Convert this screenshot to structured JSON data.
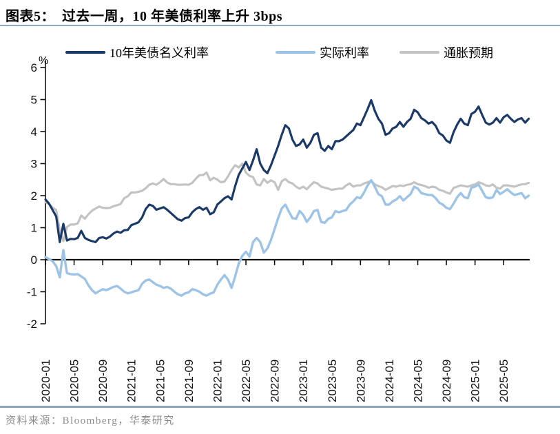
{
  "header": {
    "prefix": "图表5：",
    "title": "过去一周，10 年美债利率上升 3bps"
  },
  "source": {
    "text": "资料来源：Bloomberg，华泰研究"
  },
  "chart_data": {
    "type": "line",
    "unit_label": "%",
    "ylim": [
      -2,
      6
    ],
    "y_ticks": [
      6,
      5,
      4,
      3,
      2,
      1,
      0,
      -1,
      -2
    ],
    "x_start_month": "2020-01",
    "x_end_month": "2025-08",
    "points_per_month": 2,
    "x_tick_labels": [
      "2020-01",
      "2020-05",
      "2020-09",
      "2021-01",
      "2021-05",
      "2021-09",
      "2022-01",
      "2022-05",
      "2022-09",
      "2023-01",
      "2023-05",
      "2023-09",
      "2024-01",
      "2024-05",
      "2024-09",
      "2025-01",
      "2025-05"
    ],
    "legend_position": "top",
    "grid": false,
    "series": [
      {
        "name": "10年美债名义利率",
        "color": "#1b3a68",
        "width": 3.2,
        "values": [
          1.88,
          1.75,
          1.55,
          1.35,
          0.55,
          1.12,
          0.6,
          0.65,
          0.64,
          0.68,
          0.9,
          0.68,
          0.62,
          0.58,
          0.55,
          0.68,
          0.7,
          0.66,
          0.72,
          0.82,
          0.88,
          0.84,
          0.92,
          0.93,
          1.08,
          1.12,
          1.17,
          1.32,
          1.58,
          1.72,
          1.68,
          1.56,
          1.6,
          1.64,
          1.56,
          1.46,
          1.36,
          1.26,
          1.22,
          1.3,
          1.32,
          1.48,
          1.58,
          1.64,
          1.56,
          1.62,
          1.42,
          1.48,
          1.72,
          1.82,
          1.92,
          1.98,
          1.88,
          2.3,
          2.65,
          2.85,
          3.05,
          2.8,
          3.1,
          3.45,
          3.0,
          2.8,
          2.7,
          2.95,
          3.25,
          3.55,
          3.9,
          4.2,
          4.1,
          3.75,
          3.55,
          3.6,
          3.75,
          3.5,
          3.65,
          3.9,
          3.95,
          3.5,
          3.4,
          3.55,
          3.45,
          3.7,
          3.7,
          3.75,
          3.85,
          3.95,
          4.05,
          4.25,
          4.2,
          4.45,
          4.7,
          4.98,
          4.65,
          4.4,
          4.25,
          3.9,
          3.95,
          4.1,
          4.15,
          4.3,
          4.15,
          4.3,
          4.4,
          4.68,
          4.6,
          4.42,
          4.35,
          4.25,
          4.3,
          4.18,
          3.95,
          3.88,
          3.72,
          3.65,
          3.98,
          4.22,
          4.4,
          4.25,
          4.2,
          4.55,
          4.62,
          4.78,
          4.52,
          4.28,
          4.22,
          4.28,
          4.42,
          4.28,
          4.45,
          4.52,
          4.4,
          4.3,
          4.38,
          4.42,
          4.28,
          4.4
        ]
      },
      {
        "name": "实际利率",
        "color": "#9dc3e6",
        "width": 3.4,
        "values": [
          0.08,
          0.02,
          -0.05,
          -0.2,
          -0.55,
          0.3,
          -0.42,
          -0.45,
          -0.46,
          -0.45,
          -0.52,
          -0.6,
          -0.8,
          -0.95,
          -1.05,
          -0.98,
          -0.92,
          -0.95,
          -0.9,
          -0.85,
          -0.82,
          -0.9,
          -1.0,
          -1.05,
          -1.02,
          -0.98,
          -0.95,
          -0.75,
          -0.65,
          -0.62,
          -0.7,
          -0.78,
          -0.82,
          -0.88,
          -0.85,
          -0.9,
          -1.0,
          -1.08,
          -1.12,
          -1.05,
          -1.02,
          -0.92,
          -0.95,
          -1.0,
          -1.08,
          -1.12,
          -1.06,
          -1.02,
          -0.78,
          -0.62,
          -0.48,
          -0.62,
          -0.88,
          -0.52,
          -0.12,
          0.12,
          0.25,
          0.1,
          0.55,
          0.68,
          0.55,
          0.22,
          0.35,
          0.62,
          0.95,
          1.3,
          1.6,
          1.72,
          1.5,
          1.3,
          1.28,
          1.52,
          1.4,
          1.18,
          1.32,
          1.52,
          1.55,
          1.18,
          1.15,
          1.28,
          1.32,
          1.52,
          1.48,
          1.52,
          1.55,
          1.72,
          1.82,
          1.95,
          1.92,
          2.1,
          2.32,
          2.48,
          2.28,
          2.05,
          1.98,
          1.72,
          1.72,
          1.82,
          1.88,
          1.98,
          1.85,
          1.95,
          2.05,
          2.28,
          2.22,
          2.08,
          2.05,
          2.02,
          2.02,
          1.92,
          1.78,
          1.72,
          1.62,
          1.58,
          1.75,
          1.95,
          2.08,
          1.95,
          1.92,
          2.25,
          2.28,
          2.35,
          2.15,
          1.95,
          1.92,
          1.95,
          2.18,
          2.05,
          2.12,
          2.2,
          2.1,
          2.02,
          2.05,
          2.08,
          1.92,
          2.0
        ]
      },
      {
        "name": "通胀预期",
        "color": "#c3c3c3",
        "width": 3.2,
        "values": [
          1.8,
          1.74,
          1.63,
          1.55,
          0.92,
          0.58,
          1.02,
          1.1,
          1.1,
          1.13,
          1.38,
          1.28,
          1.42,
          1.53,
          1.6,
          1.66,
          1.62,
          1.61,
          1.62,
          1.67,
          1.7,
          1.74,
          1.92,
          1.98,
          2.1,
          2.1,
          2.12,
          2.15,
          2.23,
          2.34,
          2.38,
          2.34,
          2.42,
          2.52,
          2.41,
          2.36,
          2.36,
          2.34,
          2.34,
          2.35,
          2.34,
          2.4,
          2.53,
          2.64,
          2.64,
          2.72,
          2.48,
          2.56,
          2.5,
          2.42,
          2.44,
          2.6,
          2.8,
          2.95,
          2.88,
          3.0,
          2.72,
          2.62,
          2.58,
          2.35,
          2.32,
          2.52,
          2.4,
          2.48,
          2.42,
          2.18,
          2.45,
          2.52,
          2.42,
          2.38,
          2.28,
          2.22,
          2.28,
          2.2,
          2.32,
          2.42,
          2.38,
          2.28,
          2.25,
          2.22,
          2.18,
          2.2,
          2.22,
          2.22,
          2.32,
          2.38,
          2.28,
          2.32,
          2.32,
          2.38,
          2.42,
          2.46,
          2.35,
          2.3,
          2.26,
          2.18,
          2.24,
          2.3,
          2.28,
          2.32,
          2.3,
          2.34,
          2.36,
          2.42,
          2.36,
          2.33,
          2.3,
          2.25,
          2.28,
          2.26,
          2.18,
          2.15,
          2.1,
          2.06,
          2.24,
          2.28,
          2.32,
          2.3,
          2.28,
          2.32,
          2.35,
          2.42,
          2.38,
          2.32,
          2.3,
          2.35,
          2.25,
          2.22,
          2.32,
          2.32,
          2.3,
          2.28,
          2.32,
          2.35,
          2.36,
          2.4
        ]
      }
    ]
  }
}
